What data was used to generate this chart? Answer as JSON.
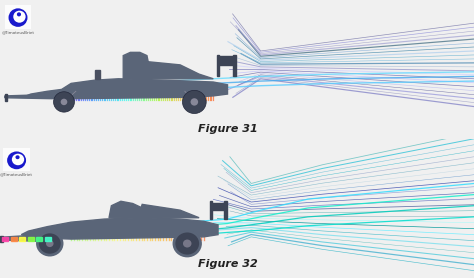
{
  "background_color": "#f0f0f0",
  "panel_bg": "#f8f8f8",
  "figure_labels": [
    "Figure 31",
    "Figure 32"
  ],
  "label_fontsize": 8,
  "car_color": "#5a6578",
  "logo_color": "#1a1acc",
  "watermark": "@TimoteusBriet",
  "streamline_colors_top": [
    "#9090cc",
    "#8888bb",
    "#a0a0dd",
    "#7878aa",
    "#b0b0ee",
    "#6868aa",
    "#c0c0ff",
    "#5858aa",
    "#d0d0ff",
    "#7070bb",
    "#88aacc",
    "#6699bb",
    "#77bbdd",
    "#55aacc",
    "#aaccee",
    "#4488aa",
    "#99bbdd",
    "#668899"
  ],
  "streamline_colors_bottom": [
    "#44bbcc",
    "#33aacc",
    "#55ccdd",
    "#22aaaa",
    "#66ddee",
    "#11aabb",
    "#77eeff",
    "#009999",
    "#88ffff",
    "#5599aa",
    "#44aaaa",
    "#6677aa",
    "#5566bb",
    "#4455aa",
    "#7788cc",
    "#3344aa",
    "#6699cc",
    "#aaccdd",
    "#88bbcc",
    "#99aacc"
  ],
  "cfd_colors_top": [
    "#44aaee",
    "#55ccff",
    "#66eeff",
    "#ff8844",
    "#ffaa44"
  ],
  "cfd_colors_bottom": [
    "#ff44aa",
    "#ff8844",
    "#ffff44",
    "#88ff44",
    "#44ff88",
    "#44ffcc"
  ]
}
